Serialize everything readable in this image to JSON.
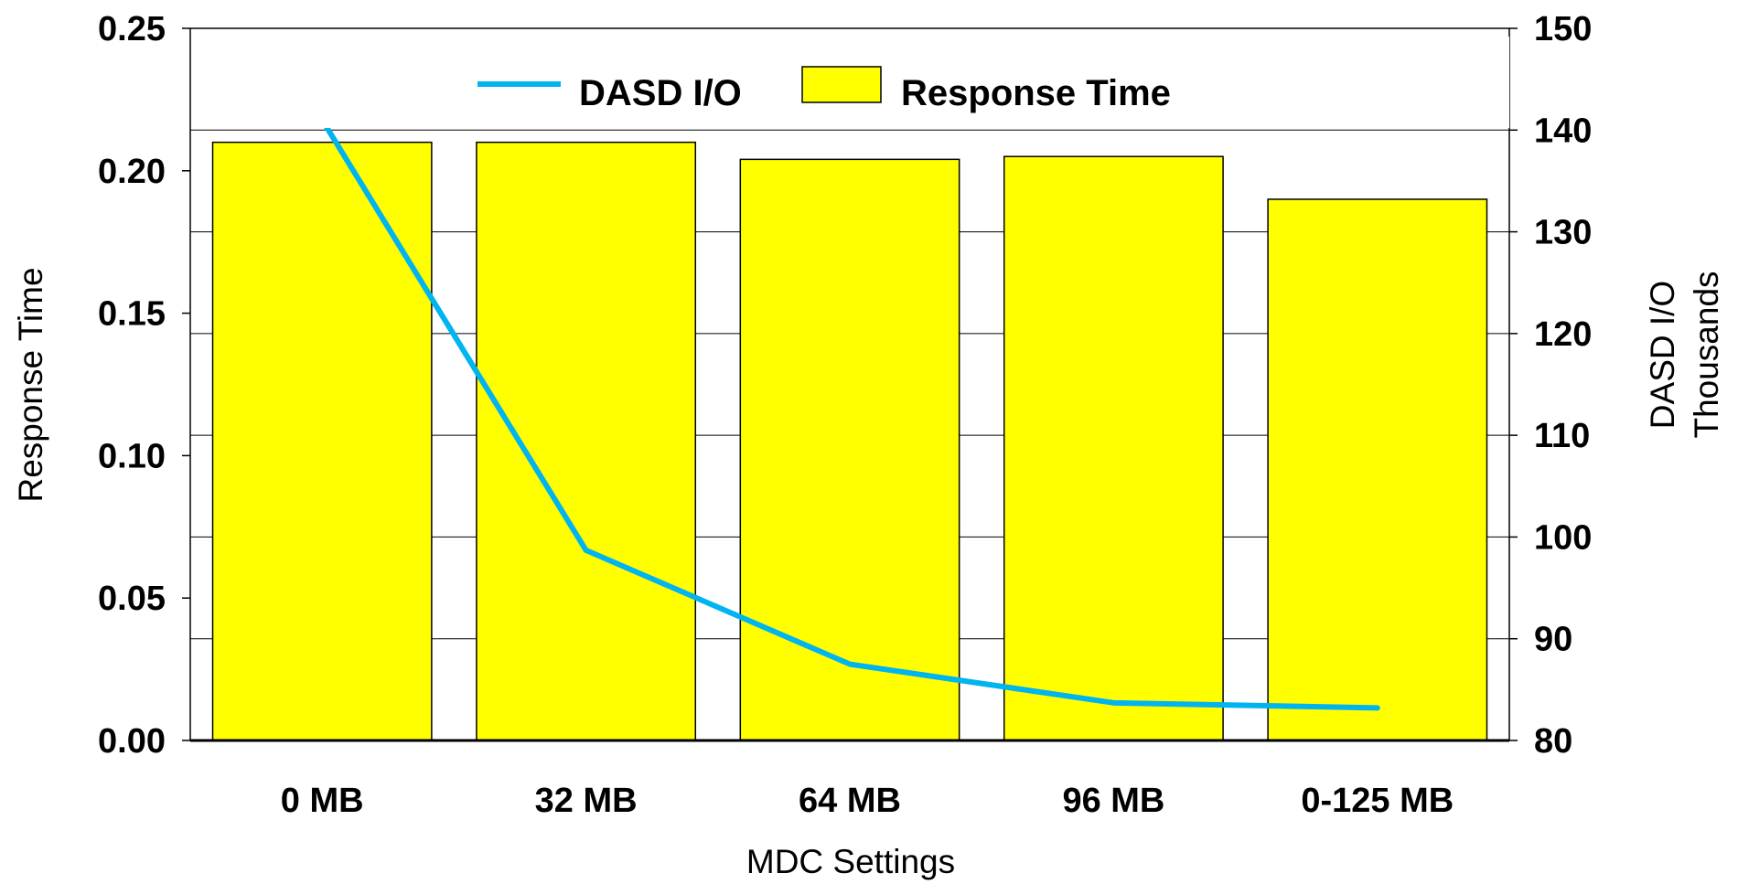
{
  "chart_data": {
    "type": "bar",
    "categories": [
      "0 MB",
      "32 MB",
      "64 MB",
      "96 MB",
      "0-125 MB"
    ],
    "series": [
      {
        "name": "Response Time",
        "chart_type": "bar",
        "axis": "left",
        "color": "#FFFF00",
        "values": [
          0.21,
          0.21,
          0.204,
          0.205,
          0.19
        ]
      },
      {
        "name": "DASD I/O",
        "chart_type": "line",
        "axis": "right",
        "color": "#00B4F0",
        "values": [
          141,
          98.7,
          87.5,
          83.7,
          83.2
        ]
      }
    ],
    "xlabel": "MDC Settings",
    "ylabel_left": "Response Time",
    "ylabel_right": "DASD I/O",
    "ylabel_right_unit": "Thousands",
    "ylim_left": [
      0,
      0.25
    ],
    "ylim_right": [
      80,
      150
    ],
    "yticks_left": [
      "0.00",
      "0.05",
      "0.10",
      "0.15",
      "0.20",
      "0.25"
    ],
    "yticks_right": [
      "80",
      "90",
      "100",
      "110",
      "120",
      "130",
      "140",
      "150"
    ],
    "grid": true,
    "legend_position": "top-center"
  }
}
